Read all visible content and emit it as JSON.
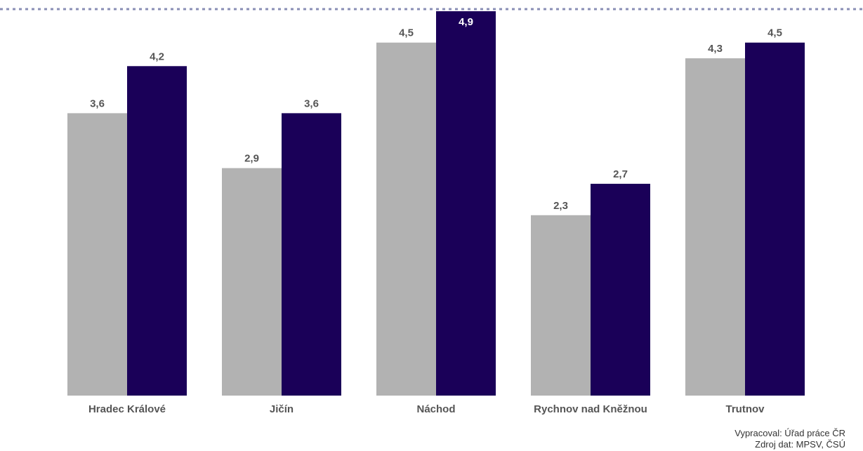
{
  "chart_data": {
    "type": "bar",
    "categories": [
      "Hradec Králové",
      "Jičín",
      "Náchod",
      "Rychnov nad Kněžnou",
      "Trutnov"
    ],
    "series": [
      {
        "values": [
          3.6,
          2.9,
          4.5,
          2.3,
          4.3
        ],
        "labels": [
          "3,6",
          "2,9",
          "4,5",
          "2,3",
          "4,3"
        ]
      },
      {
        "values": [
          4.2,
          3.6,
          4.9,
          2.7,
          4.5
        ],
        "labels": [
          "4,2",
          "3,6",
          "4,9",
          "2,7",
          "4,5"
        ]
      }
    ],
    "ylim": [
      0,
      4.9
    ],
    "grid": false,
    "colors": {
      "series_1": "#b2b2b2",
      "series_2": "#1a0058",
      "label_dark": "#555555",
      "label_inside": "#ffffff",
      "dotted_line": "#8a8fb5"
    }
  },
  "footer": {
    "line1": "Vypracoval: Úřad práce ČR",
    "line2": "Zdroj dat: MPSV, ČSÚ"
  }
}
